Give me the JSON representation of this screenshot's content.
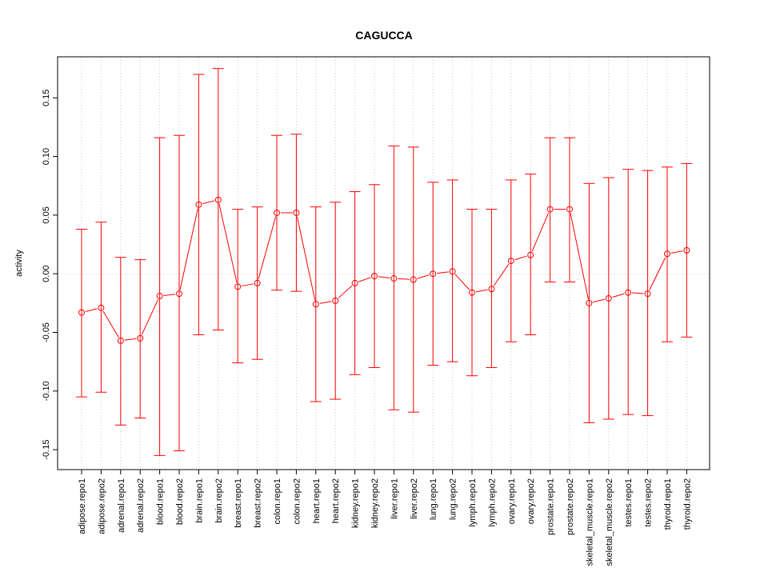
{
  "chart_data": {
    "type": "line",
    "title": "CAGUCCA",
    "xlabel": "",
    "ylabel": "activity",
    "ylim": [
      -0.167,
      0.185
    ],
    "yticks": [
      "-0.15",
      "-0.10",
      "-0.05",
      "0.00",
      "0.05",
      "0.10",
      "0.15"
    ],
    "ytick_values": [
      -0.15,
      -0.1,
      -0.05,
      0.0,
      0.05,
      0.1,
      0.15
    ],
    "grid": "dotted vertical lines at each category and horizontal line at 0",
    "color": "#ff0000",
    "gridColor": "#cccccc",
    "categories": [
      "adipose.repo1",
      "adipose.repo2",
      "adrenal.repo1",
      "adrenal.repo2",
      "blood.repo1",
      "blood.repo2",
      "brain.repo1",
      "brain.repo2",
      "breast.repo1",
      "breast.repo2",
      "colon.repo1",
      "colon.repo2",
      "heart.repo1",
      "heart.repo2",
      "kidney.repo1",
      "kidney.repo2",
      "liver.repo1",
      "liver.repo2",
      "lung.repo1",
      "lung.repo2",
      "lymph.repo1",
      "lymph.repo2",
      "ovary.repo1",
      "ovary.repo2",
      "prostate.repo1",
      "prostate.repo2",
      "skeletal_muscle.repo1",
      "skeletal_muscle.repo2",
      "testes.repo1",
      "testes.repo2",
      "thyroid.repo1",
      "thyroid.repo2"
    ],
    "values": [
      -0.033,
      -0.029,
      -0.057,
      -0.055,
      -0.019,
      -0.017,
      0.059,
      0.063,
      -0.011,
      -0.008,
      0.052,
      0.052,
      -0.026,
      -0.023,
      -0.008,
      -0.002,
      -0.004,
      -0.005,
      0.0,
      0.002,
      -0.016,
      -0.013,
      0.011,
      0.016,
      0.055,
      0.055,
      -0.025,
      -0.021,
      -0.016,
      -0.017,
      0.017,
      0.02
    ],
    "upper": [
      0.038,
      0.044,
      0.014,
      0.012,
      0.116,
      0.118,
      0.17,
      0.175,
      0.055,
      0.057,
      0.118,
      0.119,
      0.057,
      0.061,
      0.07,
      0.076,
      0.109,
      0.108,
      0.078,
      0.08,
      0.055,
      0.055,
      0.08,
      0.085,
      0.116,
      0.116,
      0.077,
      0.082,
      0.089,
      0.088,
      0.091,
      0.094
    ],
    "lower": [
      -0.105,
      -0.101,
      -0.129,
      -0.123,
      -0.155,
      -0.151,
      -0.052,
      -0.048,
      -0.076,
      -0.073,
      -0.014,
      -0.015,
      -0.109,
      -0.107,
      -0.086,
      -0.08,
      -0.116,
      -0.118,
      -0.078,
      -0.075,
      -0.087,
      -0.08,
      -0.058,
      -0.052,
      -0.007,
      -0.007,
      -0.127,
      -0.124,
      -0.12,
      -0.121,
      -0.058,
      -0.054
    ]
  }
}
